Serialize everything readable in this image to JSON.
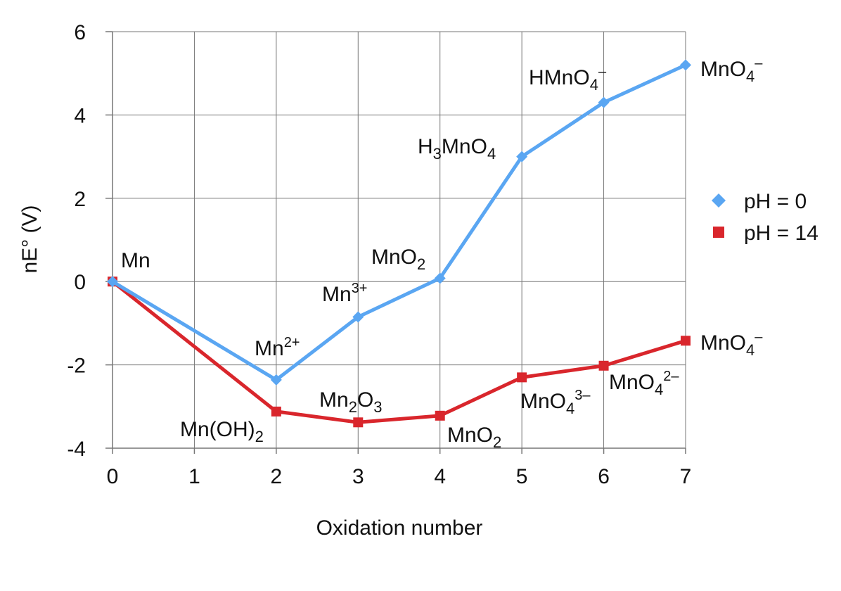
{
  "chart_data": {
    "type": "line",
    "xlabel": "Oxidation number",
    "ylabel": "nE° (V)",
    "xlim": [
      0,
      7
    ],
    "ylim": [
      -4,
      6
    ],
    "x_ticks": [
      "0",
      "1",
      "2",
      "3",
      "4",
      "5",
      "6",
      "7"
    ],
    "y_ticks": [
      "-4",
      "-2",
      "0",
      "2",
      "4",
      "6"
    ],
    "grid": true,
    "legend_position": "right",
    "series": [
      {
        "name": "pH = 0",
        "color": "#5aa6f2",
        "marker": "diamond",
        "x": [
          0,
          2,
          3,
          4,
          5,
          6,
          7
        ],
        "y": [
          0,
          -2.36,
          -0.85,
          0.08,
          3.0,
          4.3,
          5.2
        ],
        "labels": [
          {
            "base": "Mn",
            "sub": "",
            "sup": "",
            "tail": ""
          },
          {
            "base": "Mn",
            "sub": "",
            "sup": "2+",
            "tail": ""
          },
          {
            "base": "Mn",
            "sub": "",
            "sup": "3+",
            "tail": ""
          },
          {
            "base": "MnO",
            "sub": "2",
            "sup": "",
            "tail": ""
          },
          {
            "base": "H",
            "sub": "3",
            "sup": "",
            "tail": "MnO",
            "sub2": "4"
          },
          {
            "base": "HMnO",
            "sub": "4",
            "sup": "–",
            "tail": ""
          },
          {
            "base": "MnO",
            "sub": "4",
            "sup": "–",
            "tail": ""
          }
        ]
      },
      {
        "name": "pH = 14",
        "color": "#d9262c",
        "marker": "square",
        "x": [
          0,
          2,
          3,
          4,
          5,
          6,
          7
        ],
        "y": [
          0,
          -3.12,
          -3.38,
          -3.22,
          -2.3,
          -2.02,
          -1.42
        ],
        "labels": [
          {
            "base": "",
            "sub": "",
            "sup": "",
            "tail": ""
          },
          {
            "base": "Mn(OH)",
            "sub": "2",
            "sup": "",
            "tail": ""
          },
          {
            "base": "Mn",
            "sub": "2",
            "sup": "",
            "tail": "O",
            "sub2": "3"
          },
          {
            "base": "MnO",
            "sub": "2",
            "sup": "",
            "tail": ""
          },
          {
            "base": "MnO",
            "sub": "4",
            "sup": "3–",
            "tail": ""
          },
          {
            "base": "MnO",
            "sub": "4",
            "sup": "2–",
            "tail": ""
          },
          {
            "base": "MnO",
            "sub": "4",
            "sup": "–",
            "tail": ""
          }
        ]
      }
    ]
  }
}
